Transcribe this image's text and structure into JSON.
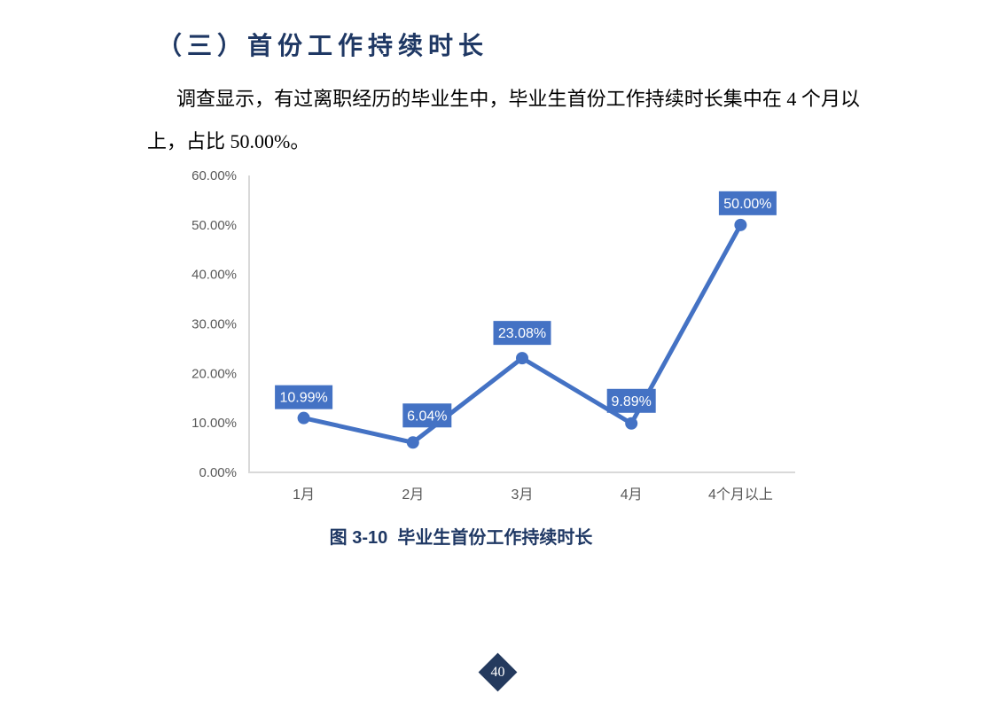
{
  "document": {
    "heading": "（三）首份工作持续时长",
    "paragraph": "调查显示，有过离职经历的毕业生中，毕业生首份工作持续时长集中在 4 个月以上，占比 50.00%。",
    "figure_caption": "图 3-10  毕业生首份工作持续时长",
    "page_number": "40"
  },
  "colors": {
    "heading_text": "#1F3864",
    "body_text": "#000000",
    "caption_text": "#1F3864",
    "axis_line": "#D9D9D9",
    "tick_text": "#595959",
    "badge_background": "#243A5E",
    "badge_text": "#FFFFFF"
  },
  "chart_data": {
    "type": "line",
    "title": "",
    "categories": [
      "1月",
      "2月",
      "3月",
      "4月",
      "4个月以上"
    ],
    "values": [
      10.99,
      6.04,
      23.08,
      9.89,
      50.0
    ],
    "data_labels": [
      "10.99%",
      "6.04%",
      "23.08%",
      "9.89%",
      "50.00%"
    ],
    "y_ticks": [
      "0.00%",
      "10.00%",
      "20.00%",
      "30.00%",
      "40.00%",
      "50.00%",
      "60.00%"
    ],
    "ylim": [
      0,
      60
    ],
    "grid": "off",
    "legend": "none",
    "marker": "circle",
    "line_color": "#4472C4",
    "label_box_color": "#4472C4",
    "label_text_color": "#FFFFFF",
    "label_offsets": {
      "dx": [
        0,
        16,
        0,
        0,
        8
      ],
      "gap": [
        10,
        17,
        15,
        12,
        11
      ]
    }
  }
}
